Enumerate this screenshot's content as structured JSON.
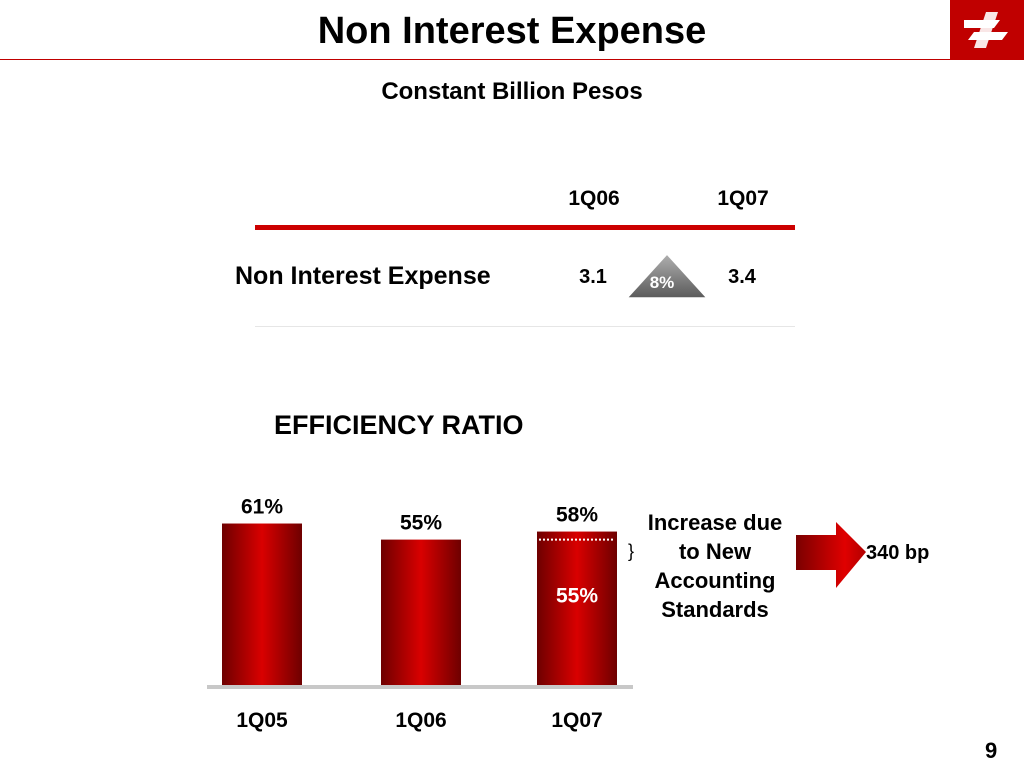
{
  "header": {
    "title": "Non Interest Expense",
    "subtitle": "Constant Billion Pesos"
  },
  "table": {
    "columns": [
      "1Q06",
      "1Q07"
    ],
    "row": {
      "label": "Non Interest Expense",
      "values": [
        "3.1",
        "3.4"
      ]
    },
    "growth": "8%"
  },
  "efficiency": {
    "title": "EFFICIENCY RATIO",
    "note": "Increase due to New Accounting Standards",
    "bp_change": "340 bp",
    "brace": "}"
  },
  "chart_data": {
    "type": "bar",
    "categories": [
      "1Q05",
      "1Q06",
      "1Q07"
    ],
    "values": [
      61,
      55,
      58
    ],
    "value_labels": [
      "61%",
      "55%",
      "58%"
    ],
    "inner_segment": {
      "category": "1Q07",
      "value": 55,
      "label": "55%"
    },
    "colors": {
      "bar_dark": "#6e0000",
      "bar_light": "#d90000",
      "axis": "#c8c8c8",
      "label_white": "#ffffff"
    }
  },
  "footer": {
    "page_number": "9"
  },
  "colors": {
    "accent": "#cc0000",
    "badge": "#808080"
  }
}
